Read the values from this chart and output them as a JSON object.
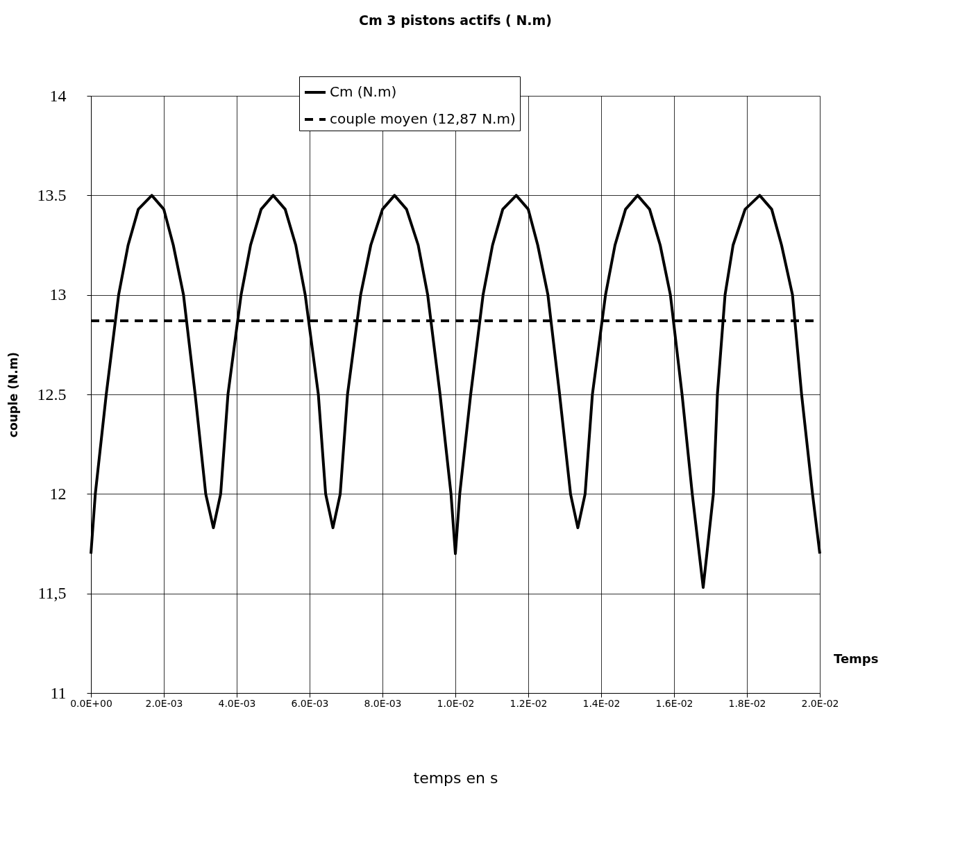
{
  "chart_data": {
    "type": "line",
    "title": "Cm 3 pistons actifs ( N.m)",
    "xlabel": "temps en s",
    "ylabel": "couple (N.m)",
    "annotations": [
      "Temps"
    ],
    "series": [
      {
        "name": "Cm (N.m)",
        "color": "#000000",
        "line_style": "solid",
        "x": [
          0,
          0.00012,
          0.00042,
          0.00076,
          0.00102,
          0.0013,
          0.00167,
          0.002,
          0.00226,
          0.00254,
          0.00286,
          0.00315,
          0.00336,
          0.00356,
          0.00376,
          0.00412,
          0.00438,
          0.00467,
          0.005,
          0.00533,
          0.00562,
          0.00588,
          0.00624,
          0.00644,
          0.00664,
          0.00684,
          0.00704,
          0.0074,
          0.00768,
          0.008,
          0.00833,
          0.00866,
          0.00898,
          0.00924,
          0.00958,
          0.00988,
          0.01,
          0.01012,
          0.01042,
          0.01076,
          0.01102,
          0.0113,
          0.01167,
          0.012,
          0.01226,
          0.01254,
          0.01286,
          0.01316,
          0.01336,
          0.01356,
          0.01376,
          0.01412,
          0.01438,
          0.01467,
          0.015,
          0.01533,
          0.01562,
          0.0159,
          0.01622,
          0.0165,
          0.0168,
          0.01708,
          0.01719,
          0.0174,
          0.01762,
          0.01795,
          0.01835,
          0.01868,
          0.01895,
          0.01925,
          0.0195,
          0.0198,
          0.02
        ],
        "values": [
          11.7,
          12.0,
          12.5,
          13.0,
          13.25,
          13.43,
          13.5,
          13.43,
          13.25,
          13.0,
          12.5,
          12.0,
          11.83,
          12.0,
          12.5,
          13.0,
          13.25,
          13.43,
          13.5,
          13.43,
          13.25,
          13.0,
          12.5,
          12.0,
          11.83,
          12.0,
          12.5,
          13.0,
          13.25,
          13.43,
          13.5,
          13.43,
          13.25,
          13.0,
          12.5,
          12.0,
          11.7,
          12.0,
          12.5,
          13.0,
          13.25,
          13.43,
          13.5,
          13.43,
          13.25,
          13.0,
          12.5,
          12.0,
          11.83,
          12.0,
          12.5,
          13.0,
          13.25,
          13.43,
          13.5,
          13.43,
          13.25,
          13.0,
          12.5,
          12.0,
          11.53,
          12.0,
          12.5,
          13.0,
          13.25,
          13.43,
          13.5,
          13.43,
          13.25,
          13.0,
          12.5,
          12.0,
          11.7
        ]
      },
      {
        "name": "couple moyen (12,87 N.m)",
        "color": "#000000",
        "line_style": "dashed",
        "x": [
          0,
          0.02
        ],
        "values": [
          12.87,
          12.87
        ]
      }
    ],
    "xlim": [
      0,
      0.02
    ],
    "xticks": [
      {
        "value": 0,
        "label": "0.0E+00"
      },
      {
        "value": 0.002,
        "label": "2.0E-03"
      },
      {
        "value": 0.004,
        "label": "4.0E-03"
      },
      {
        "value": 0.006,
        "label": "6.0E-03"
      },
      {
        "value": 0.008,
        "label": "8.0E-03"
      },
      {
        "value": 0.01,
        "label": "1.0E-02"
      },
      {
        "value": 0.012,
        "label": "1.2E-02"
      },
      {
        "value": 0.014,
        "label": "1.4E-02"
      },
      {
        "value": 0.016,
        "label": "1.6E-02"
      },
      {
        "value": 0.018,
        "label": "1.8E-02"
      },
      {
        "value": 0.02,
        "label": "2.0E-02"
      }
    ],
    "ylim": [
      11,
      14
    ],
    "yticks": [
      11,
      {
        "value": 11.5,
        "label": "11,5"
      },
      12,
      12.5,
      13,
      13.5,
      14
    ],
    "grid": true,
    "legend": "top",
    "marker": "none"
  }
}
